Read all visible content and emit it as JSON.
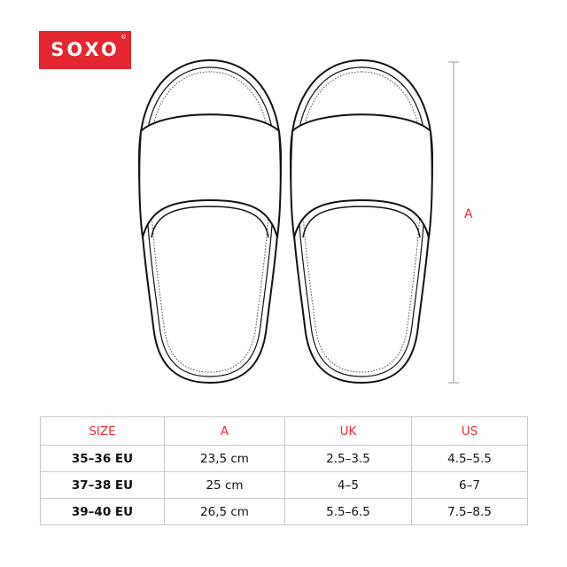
{
  "logo": {
    "text": "SOXO",
    "registered": "®",
    "color": "#e3262f"
  },
  "dimension": {
    "label": "A"
  },
  "table": {
    "headers": [
      "SIZE",
      "A",
      "UK",
      "US"
    ],
    "header_color": "#f0283c",
    "rows": [
      [
        "35–36 EU",
        "23,5 cm",
        "2.5–3.5",
        "4.5–5.5"
      ],
      [
        "37–38 EU",
        "25 cm",
        "4–5",
        "6–7"
      ],
      [
        "39–40 EU",
        "26,5 cm",
        "5.5–6.5",
        "7.5–8.5"
      ]
    ]
  }
}
